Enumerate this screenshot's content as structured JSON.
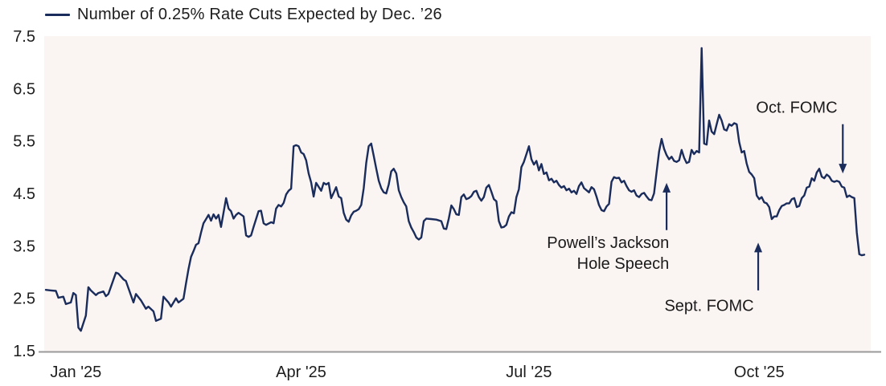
{
  "legend": {
    "label": "Number of 0.25% Rate Cuts Expected by Dec. ’26"
  },
  "colors": {
    "line": "#1a2c5b",
    "arrow": "#1a2c5b",
    "text": "#1d1d1d",
    "axis_line": "#9a9a9a",
    "plot_background": "#faf4f2",
    "page_background": "#ffffff"
  },
  "chart_data": {
    "type": "line",
    "title": "Number of 0.25% Rate Cuts Expected by Dec. '26",
    "xlabel": "",
    "ylabel": "Number of 0.25% rate cuts expected by Dec. '26",
    "ylim": [
      1.5,
      7.5
    ],
    "grid": false,
    "legend_position": "top-left",
    "plot_bg": "#faf4f2",
    "x_unit": "days since 2024-12-20 (Jan 1 2025 = day 12)",
    "x_ticks": [
      {
        "label": "Jan '25",
        "day": 12
      },
      {
        "label": "Apr '25",
        "day": 102
      },
      {
        "label": "Jul '25",
        "day": 193
      },
      {
        "label": "Oct '25",
        "day": 285
      }
    ],
    "y_ticks": [
      7.5,
      6.5,
      5.5,
      4.5,
      3.5,
      2.5,
      1.5
    ],
    "series": [
      {
        "name": "Number of 0.25% Rate Cuts Expected by Dec. '26",
        "color": "#1a2c5b",
        "points": [
          [
            0,
            2.66
          ],
          [
            2,
            2.65
          ],
          [
            4,
            2.64
          ],
          [
            5,
            2.51
          ],
          [
            7,
            2.53
          ],
          [
            8,
            2.39
          ],
          [
            10,
            2.42
          ],
          [
            11,
            2.6
          ],
          [
            12,
            2.56
          ],
          [
            13,
            1.94
          ],
          [
            14,
            1.88
          ],
          [
            16,
            2.17
          ],
          [
            17,
            2.71
          ],
          [
            18,
            2.65
          ],
          [
            20,
            2.56
          ],
          [
            21,
            2.6
          ],
          [
            23,
            2.63
          ],
          [
            24,
            2.54
          ],
          [
            25,
            2.58
          ],
          [
            28,
            2.99
          ],
          [
            29,
            2.97
          ],
          [
            31,
            2.86
          ],
          [
            32,
            2.83
          ],
          [
            35,
            2.42
          ],
          [
            36,
            2.58
          ],
          [
            38,
            2.46
          ],
          [
            40,
            2.3
          ],
          [
            41,
            2.34
          ],
          [
            43,
            2.25
          ],
          [
            44,
            2.07
          ],
          [
            46,
            2.11
          ],
          [
            47,
            2.53
          ],
          [
            49,
            2.42
          ],
          [
            50,
            2.34
          ],
          [
            52,
            2.5
          ],
          [
            53,
            2.42
          ],
          [
            55,
            2.49
          ],
          [
            56,
            2.78
          ],
          [
            57,
            3.06
          ],
          [
            58,
            3.29
          ],
          [
            59,
            3.4
          ],
          [
            60,
            3.52
          ],
          [
            61,
            3.55
          ],
          [
            62,
            3.75
          ],
          [
            63,
            3.93
          ],
          [
            64,
            4.01
          ],
          [
            65,
            4.09
          ],
          [
            66,
            3.98
          ],
          [
            67,
            4.1
          ],
          [
            68,
            4.02
          ],
          [
            69,
            4.09
          ],
          [
            70,
            3.86
          ],
          [
            71,
            4.13
          ],
          [
            72,
            4.41
          ],
          [
            73,
            4.21
          ],
          [
            74,
            4.16
          ],
          [
            75,
            4.02
          ],
          [
            76,
            4.09
          ],
          [
            77,
            4.13
          ],
          [
            79,
            4.06
          ],
          [
            80,
            3.7
          ],
          [
            81,
            3.67
          ],
          [
            82,
            3.7
          ],
          [
            83,
            3.86
          ],
          [
            84,
            4.01
          ],
          [
            85,
            4.16
          ],
          [
            86,
            4.17
          ],
          [
            87,
            3.93
          ],
          [
            88,
            3.9
          ],
          [
            90,
            3.95
          ],
          [
            91,
            3.93
          ],
          [
            92,
            4.21
          ],
          [
            93,
            4.28
          ],
          [
            94,
            4.25
          ],
          [
            95,
            4.32
          ],
          [
            96,
            4.48
          ],
          [
            97,
            4.55
          ],
          [
            98,
            4.59
          ],
          [
            99,
            5.4
          ],
          [
            100,
            5.42
          ],
          [
            101,
            5.4
          ],
          [
            102,
            5.28
          ],
          [
            103,
            5.25
          ],
          [
            104,
            5.13
          ],
          [
            105,
            4.88
          ],
          [
            106,
            4.71
          ],
          [
            107,
            4.44
          ],
          [
            108,
            4.7
          ],
          [
            110,
            4.55
          ],
          [
            111,
            4.7
          ],
          [
            112,
            4.67
          ],
          [
            113,
            4.7
          ],
          [
            114,
            4.41
          ],
          [
            115,
            4.51
          ],
          [
            116,
            4.62
          ],
          [
            117,
            4.44
          ],
          [
            118,
            4.41
          ],
          [
            119,
            4.13
          ],
          [
            120,
            4.0
          ],
          [
            121,
            3.96
          ],
          [
            122,
            4.08
          ],
          [
            123,
            4.15
          ],
          [
            124,
            4.17
          ],
          [
            125,
            4.2
          ],
          [
            126,
            4.28
          ],
          [
            127,
            4.6
          ],
          [
            128,
            5.08
          ],
          [
            129,
            5.4
          ],
          [
            130,
            5.45
          ],
          [
            131,
            5.22
          ],
          [
            132,
            4.97
          ],
          [
            133,
            4.74
          ],
          [
            134,
            4.6
          ],
          [
            135,
            4.52
          ],
          [
            136,
            4.5
          ],
          [
            137,
            4.67
          ],
          [
            138,
            4.92
          ],
          [
            139,
            4.97
          ],
          [
            140,
            4.88
          ],
          [
            141,
            4.56
          ],
          [
            142,
            4.43
          ],
          [
            143,
            4.33
          ],
          [
            144,
            4.25
          ],
          [
            145,
            3.97
          ],
          [
            146,
            3.85
          ],
          [
            147,
            3.76
          ],
          [
            148,
            3.66
          ],
          [
            149,
            3.62
          ],
          [
            150,
            3.66
          ],
          [
            151,
            3.97
          ],
          [
            152,
            4.02
          ],
          [
            154,
            4.01
          ],
          [
            156,
            4.0
          ],
          [
            158,
            3.97
          ],
          [
            159,
            3.83
          ],
          [
            160,
            3.82
          ],
          [
            161,
            4.02
          ],
          [
            162,
            4.27
          ],
          [
            163,
            4.2
          ],
          [
            164,
            4.1
          ],
          [
            165,
            4.09
          ],
          [
            166,
            4.43
          ],
          [
            167,
            4.48
          ],
          [
            168,
            4.39
          ],
          [
            169,
            4.41
          ],
          [
            170,
            4.45
          ],
          [
            171,
            4.53
          ],
          [
            172,
            4.55
          ],
          [
            173,
            4.43
          ],
          [
            174,
            4.36
          ],
          [
            175,
            4.43
          ],
          [
            176,
            4.61
          ],
          [
            177,
            4.66
          ],
          [
            178,
            4.53
          ],
          [
            179,
            4.39
          ],
          [
            180,
            4.35
          ],
          [
            181,
            3.97
          ],
          [
            182,
            3.85
          ],
          [
            183,
            3.86
          ],
          [
            184,
            3.9
          ],
          [
            185,
            4.06
          ],
          [
            186,
            4.14
          ],
          [
            187,
            4.12
          ],
          [
            188,
            4.43
          ],
          [
            189,
            4.58
          ],
          [
            190,
            5.0
          ],
          [
            191,
            5.1
          ],
          [
            192,
            5.25
          ],
          [
            193,
            5.4
          ],
          [
            194,
            5.15
          ],
          [
            195,
            5.05
          ],
          [
            196,
            5.12
          ],
          [
            197,
            4.94
          ],
          [
            198,
            5.06
          ],
          [
            199,
            4.87
          ],
          [
            200,
            4.9
          ],
          [
            201,
            4.75
          ],
          [
            202,
            4.78
          ],
          [
            203,
            4.71
          ],
          [
            204,
            4.74
          ],
          [
            205,
            4.66
          ],
          [
            206,
            4.61
          ],
          [
            207,
            4.64
          ],
          [
            208,
            4.56
          ],
          [
            209,
            4.59
          ],
          [
            210,
            4.52
          ],
          [
            211,
            4.55
          ],
          [
            212,
            4.49
          ],
          [
            213,
            4.64
          ],
          [
            214,
            4.71
          ],
          [
            215,
            4.6
          ],
          [
            216,
            4.56
          ],
          [
            217,
            4.52
          ],
          [
            218,
            4.62
          ],
          [
            219,
            4.58
          ],
          [
            220,
            4.44
          ],
          [
            221,
            4.28
          ],
          [
            222,
            4.18
          ],
          [
            223,
            4.16
          ],
          [
            224,
            4.25
          ],
          [
            225,
            4.3
          ],
          [
            226,
            4.72
          ],
          [
            227,
            4.81
          ],
          [
            228,
            4.79
          ],
          [
            229,
            4.8
          ],
          [
            230,
            4.71
          ],
          [
            231,
            4.74
          ],
          [
            232,
            4.64
          ],
          [
            233,
            4.56
          ],
          [
            234,
            4.53
          ],
          [
            235,
            4.56
          ],
          [
            236,
            4.46
          ],
          [
            237,
            4.43
          ],
          [
            238,
            4.49
          ],
          [
            239,
            4.51
          ],
          [
            240,
            4.44
          ],
          [
            241,
            4.38
          ],
          [
            242,
            4.37
          ],
          [
            243,
            4.5
          ],
          [
            244,
            4.9
          ],
          [
            245,
            5.3
          ],
          [
            246,
            5.54
          ],
          [
            247,
            5.35
          ],
          [
            248,
            5.23
          ],
          [
            249,
            5.15
          ],
          [
            250,
            5.2
          ],
          [
            251,
            5.12
          ],
          [
            252,
            5.1
          ],
          [
            253,
            5.13
          ],
          [
            254,
            5.33
          ],
          [
            255,
            5.18
          ],
          [
            256,
            5.08
          ],
          [
            257,
            5.1
          ],
          [
            258,
            5.33
          ],
          [
            259,
            5.25
          ],
          [
            260,
            5.31
          ],
          [
            261,
            5.28
          ],
          [
            262,
            7.27
          ],
          [
            263,
            5.45
          ],
          [
            264,
            5.43
          ],
          [
            265,
            5.89
          ],
          [
            266,
            5.68
          ],
          [
            267,
            5.63
          ],
          [
            268,
            5.82
          ],
          [
            269,
            6.0
          ],
          [
            270,
            5.89
          ],
          [
            271,
            5.72
          ],
          [
            272,
            5.7
          ],
          [
            273,
            5.82
          ],
          [
            274,
            5.79
          ],
          [
            275,
            5.84
          ],
          [
            276,
            5.82
          ],
          [
            277,
            5.48
          ],
          [
            278,
            5.28
          ],
          [
            279,
            5.31
          ],
          [
            280,
            5.07
          ],
          [
            281,
            4.91
          ],
          [
            282,
            4.86
          ],
          [
            283,
            4.79
          ],
          [
            284,
            4.46
          ],
          [
            285,
            4.39
          ],
          [
            286,
            4.43
          ],
          [
            287,
            4.33
          ],
          [
            288,
            4.31
          ],
          [
            289,
            4.24
          ],
          [
            290,
            4.01
          ],
          [
            291,
            4.06
          ],
          [
            292,
            4.06
          ],
          [
            293,
            4.18
          ],
          [
            294,
            4.26
          ],
          [
            295,
            4.28
          ],
          [
            296,
            4.31
          ],
          [
            297,
            4.31
          ],
          [
            298,
            4.39
          ],
          [
            299,
            4.41
          ],
          [
            300,
            4.24
          ],
          [
            301,
            4.26
          ],
          [
            302,
            4.41
          ],
          [
            303,
            4.46
          ],
          [
            304,
            4.61
          ],
          [
            305,
            4.63
          ],
          [
            306,
            4.79
          ],
          [
            307,
            4.74
          ],
          [
            308,
            4.9
          ],
          [
            309,
            4.97
          ],
          [
            310,
            4.82
          ],
          [
            311,
            4.79
          ],
          [
            312,
            4.86
          ],
          [
            313,
            4.82
          ],
          [
            314,
            4.74
          ],
          [
            315,
            4.72
          ],
          [
            316,
            4.74
          ],
          [
            317,
            4.72
          ],
          [
            318,
            4.63
          ],
          [
            319,
            4.61
          ],
          [
            320,
            4.43
          ],
          [
            321,
            4.46
          ],
          [
            322,
            4.43
          ],
          [
            323,
            4.41
          ],
          [
            324,
            3.75
          ],
          [
            325,
            3.34
          ],
          [
            326,
            3.32
          ],
          [
            327,
            3.33
          ]
        ]
      }
    ],
    "annotations": [
      {
        "id": "jackson-hole",
        "arrow": {
          "day": 248,
          "from": 3.8,
          "to": 4.7
        },
        "text": {
          "lines": [
            "Powell’s Jackson",
            "Hole Speech"
          ],
          "anchor": "end",
          "day": 249,
          "value": 3.46
        }
      },
      {
        "id": "sept-fomc",
        "arrow": {
          "day": 284.6,
          "from": 2.65,
          "to": 3.56
        },
        "text": {
          "lines": [
            "Sept. FOMC"
          ],
          "anchor": "middle",
          "day": 265,
          "value": 2.26
        }
      },
      {
        "id": "oct-fomc",
        "arrow": {
          "day": 318.4,
          "from": 5.82,
          "to": 4.88
        },
        "text": {
          "lines": [
            "Oct. FOMC"
          ],
          "anchor": "middle",
          "day": 300,
          "value": 6.04
        }
      }
    ]
  }
}
